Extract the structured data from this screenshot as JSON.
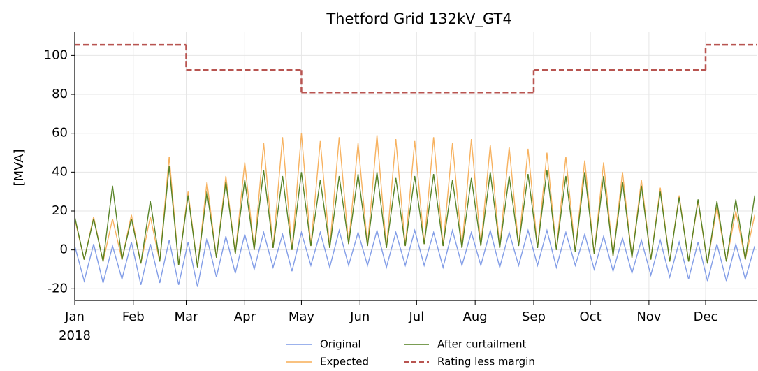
{
  "chart_data": {
    "type": "line",
    "title": "Thetford Grid 132kV_GT4",
    "ylabel": "[MVA]",
    "xlim": [
      "2018-01-01",
      "2018-12-28"
    ],
    "xticks": [
      {
        "value": "2018-01-01",
        "label": "Jan"
      },
      {
        "value": "2018-02-01",
        "label": "Feb"
      },
      {
        "value": "2018-03-01",
        "label": "Mar"
      },
      {
        "value": "2018-04-01",
        "label": "Apr"
      },
      {
        "value": "2018-05-01",
        "label": "May"
      },
      {
        "value": "2018-06-01",
        "label": "Jun"
      },
      {
        "value": "2018-07-01",
        "label": "Jul"
      },
      {
        "value": "2018-08-01",
        "label": "Aug"
      },
      {
        "value": "2018-09-01",
        "label": "Sep"
      },
      {
        "value": "2018-10-01",
        "label": "Oct"
      },
      {
        "value": "2018-11-01",
        "label": "Nov"
      },
      {
        "value": "2018-12-01",
        "label": "Dec"
      }
    ],
    "xtick_sublabel": "2018",
    "ylim": [
      -26,
      112
    ],
    "yticks": [
      -20,
      0,
      20,
      40,
      60,
      80,
      100
    ],
    "grid": true,
    "legend": "bottom",
    "x": [
      "2018-01-01",
      "2018-01-06",
      "2018-01-11",
      "2018-01-16",
      "2018-01-21",
      "2018-01-26",
      "2018-01-31",
      "2018-02-05",
      "2018-02-10",
      "2018-02-15",
      "2018-02-20",
      "2018-02-25",
      "2018-03-02",
      "2018-03-07",
      "2018-03-12",
      "2018-03-17",
      "2018-03-22",
      "2018-03-27",
      "2018-04-01",
      "2018-04-06",
      "2018-04-11",
      "2018-04-16",
      "2018-04-21",
      "2018-04-26",
      "2018-05-01",
      "2018-05-06",
      "2018-05-11",
      "2018-05-16",
      "2018-05-21",
      "2018-05-26",
      "2018-05-31",
      "2018-06-05",
      "2018-06-10",
      "2018-06-15",
      "2018-06-20",
      "2018-06-25",
      "2018-06-30",
      "2018-07-05",
      "2018-07-10",
      "2018-07-15",
      "2018-07-20",
      "2018-07-25",
      "2018-07-30",
      "2018-08-04",
      "2018-08-09",
      "2018-08-14",
      "2018-08-19",
      "2018-08-24",
      "2018-08-29",
      "2018-09-03",
      "2018-09-08",
      "2018-09-13",
      "2018-09-18",
      "2018-09-23",
      "2018-09-28",
      "2018-10-03",
      "2018-10-08",
      "2018-10-13",
      "2018-10-18",
      "2018-10-23",
      "2018-10-28",
      "2018-11-02",
      "2018-11-07",
      "2018-11-12",
      "2018-11-17",
      "2018-11-22",
      "2018-11-27",
      "2018-12-02",
      "2018-12-07",
      "2018-12-12",
      "2018-12-17",
      "2018-12-22",
      "2018-12-27"
    ],
    "series": [
      {
        "name": "Original",
        "color": "#7b98e6",
        "values": [
          2,
          -16,
          3,
          -17,
          2,
          -15,
          4,
          -18,
          3,
          -17,
          5,
          -18,
          4,
          -19,
          6,
          -14,
          7,
          -12,
          8,
          -10,
          9,
          -9,
          8,
          -11,
          9,
          -8,
          9,
          -9,
          10,
          -8,
          9,
          -8,
          10,
          -9,
          9,
          -8,
          10,
          -8,
          9,
          -9,
          10,
          -8,
          9,
          -8,
          10,
          -9,
          9,
          -8,
          10,
          -8,
          10,
          -9,
          9,
          -8,
          8,
          -10,
          7,
          -11,
          6,
          -12,
          5,
          -13,
          5,
          -14,
          4,
          -15,
          4,
          -16,
          3,
          -16,
          3,
          -15,
          2
        ]
      },
      {
        "name": "Expected",
        "color": "#f7ae57",
        "values": [
          16,
          -5,
          17,
          -6,
          16,
          -5,
          18,
          -7,
          17,
          -6,
          48,
          -8,
          30,
          -9,
          35,
          -4,
          38,
          -2,
          45,
          0,
          55,
          1,
          58,
          0,
          60,
          2,
          56,
          1,
          58,
          3,
          55,
          2,
          59,
          1,
          57,
          2,
          56,
          3,
          58,
          2,
          55,
          1,
          57,
          2,
          54,
          1,
          53,
          2,
          52,
          1,
          50,
          0,
          48,
          -1,
          46,
          -2,
          45,
          -3,
          40,
          -4,
          36,
          -5,
          32,
          -6,
          28,
          -6,
          25,
          -7,
          22,
          -6,
          20,
          -5,
          18
        ]
      },
      {
        "name": "After curtailment",
        "color": "#4f7d1c",
        "values": [
          17,
          -5,
          16,
          -6,
          33,
          -5,
          16,
          -7,
          25,
          -6,
          43,
          -8,
          28,
          -9,
          30,
          -4,
          35,
          -2,
          36,
          0,
          41,
          1,
          38,
          0,
          40,
          2,
          36,
          1,
          38,
          3,
          39,
          2,
          40,
          1,
          37,
          2,
          38,
          3,
          39,
          2,
          36,
          1,
          37,
          2,
          40,
          1,
          38,
          2,
          39,
          1,
          41,
          0,
          38,
          -1,
          40,
          -2,
          38,
          -3,
          35,
          -4,
          33,
          -5,
          30,
          -6,
          27,
          -6,
          26,
          -7,
          25,
          -6,
          26,
          -5,
          28
        ]
      },
      {
        "name": "Rating less margin",
        "color": "#b85450",
        "dash": true,
        "step": "post",
        "x": [
          "2018-01-01",
          "2018-03-01",
          "2018-05-01",
          "2018-09-01",
          "2018-12-01"
        ],
        "values": [
          105.5,
          92.5,
          81,
          92.5,
          105.5
        ]
      }
    ]
  }
}
